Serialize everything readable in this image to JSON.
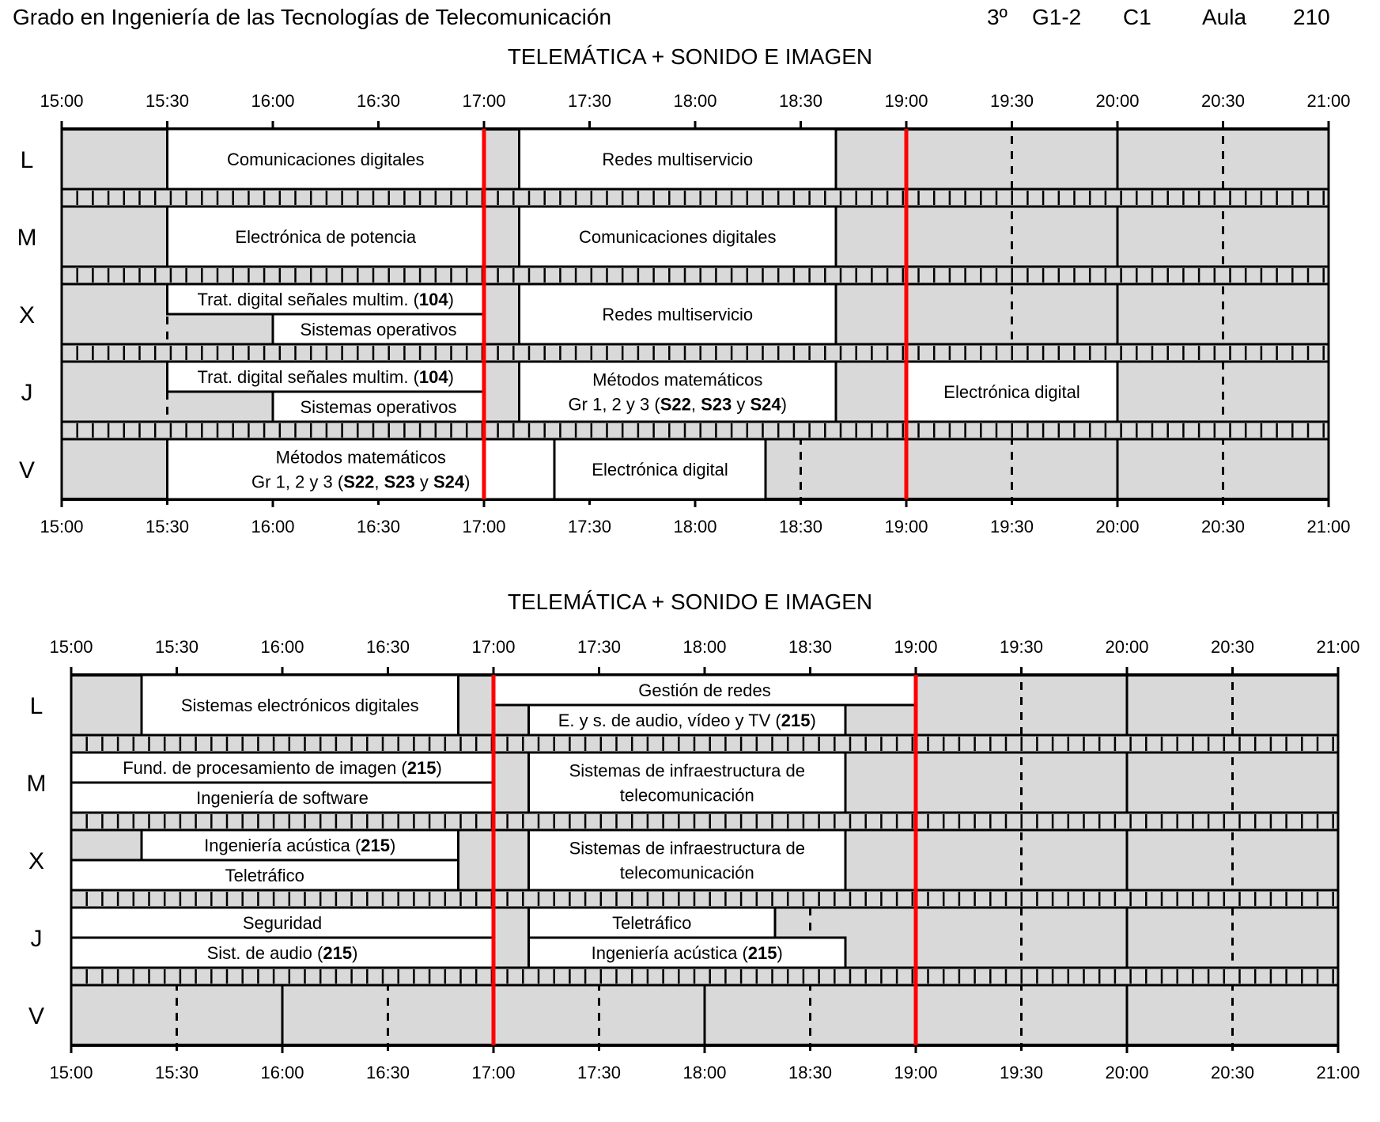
{
  "header": {
    "degree": "Grado en Ingeniería de las Tecnologías de Telecomunicación",
    "year": "3º",
    "group": "G1-2",
    "term": "C1",
    "room_label": "Aula",
    "room_number": "210"
  },
  "colors": {
    "empty_slot": "#d9d9d9",
    "class_slot": "#ffffff",
    "lines": "#000000",
    "red_marker": "#ff0000"
  },
  "time_labels": [
    "15:00",
    "15:30",
    "16:00",
    "16:30",
    "17:00",
    "17:30",
    "18:00",
    "18:30",
    "19:00",
    "19:30",
    "20:00",
    "20:30",
    "21:00"
  ],
  "schedules": [
    {
      "title": "TELEMÁTICA + SONIDO E IMAGEN",
      "red_markers": [
        "17:00",
        "19:00"
      ],
      "days": [
        {
          "label": "L",
          "blocks": [
            {
              "start": "15:30",
              "end": "17:00",
              "half": "full",
              "lines": [
                [
                  {
                    "t": "Comunicaciones digitales"
                  }
                ]
              ]
            },
            {
              "start": "17:10",
              "end": "18:40",
              "half": "full",
              "lines": [
                [
                  {
                    "t": "Redes multiservicio"
                  }
                ]
              ]
            }
          ]
        },
        {
          "label": "M",
          "blocks": [
            {
              "start": "15:30",
              "end": "17:00",
              "half": "full",
              "lines": [
                [
                  {
                    "t": "Electrónica de potencia"
                  }
                ]
              ]
            },
            {
              "start": "17:10",
              "end": "18:40",
              "half": "full",
              "lines": [
                [
                  {
                    "t": "Comunicaciones digitales"
                  }
                ]
              ]
            }
          ]
        },
        {
          "label": "X",
          "blocks": [
            {
              "start": "15:30",
              "end": "17:00",
              "half": "top",
              "lines": [
                [
                  {
                    "t": "Trat. digital señales multim. ("
                  },
                  {
                    "t": "104",
                    "b": true
                  },
                  {
                    "t": ")"
                  }
                ]
              ]
            },
            {
              "start": "16:00",
              "end": "17:00",
              "half": "bottom",
              "lines": [
                [
                  {
                    "t": "Sistemas operativos"
                  }
                ]
              ]
            },
            {
              "start": "17:10",
              "end": "18:40",
              "half": "full",
              "lines": [
                [
                  {
                    "t": "Redes multiservicio"
                  }
                ]
              ]
            }
          ]
        },
        {
          "label": "J",
          "blocks": [
            {
              "start": "15:30",
              "end": "17:00",
              "half": "top",
              "lines": [
                [
                  {
                    "t": "Trat. digital señales multim. ("
                  },
                  {
                    "t": "104",
                    "b": true
                  },
                  {
                    "t": ")"
                  }
                ]
              ]
            },
            {
              "start": "16:00",
              "end": "17:00",
              "half": "bottom",
              "lines": [
                [
                  {
                    "t": "Sistemas operativos"
                  }
                ]
              ]
            },
            {
              "start": "17:10",
              "end": "18:40",
              "half": "full",
              "lines": [
                [
                  {
                    "t": "Métodos matemáticos"
                  }
                ],
                [
                  {
                    "t": "Gr 1, 2 y 3 ("
                  },
                  {
                    "t": "S22",
                    "b": true
                  },
                  {
                    "t": ", "
                  },
                  {
                    "t": "S23",
                    "b": true
                  },
                  {
                    "t": " y "
                  },
                  {
                    "t": "S24",
                    "b": true
                  },
                  {
                    "t": ")"
                  }
                ]
              ]
            },
            {
              "start": "19:00",
              "end": "20:00",
              "half": "full",
              "lines": [
                [
                  {
                    "t": "Electrónica digital"
                  }
                ]
              ]
            }
          ]
        },
        {
          "label": "V",
          "blocks": [
            {
              "start": "15:30",
              "end": "17:20",
              "half": "full",
              "lines": [
                [
                  {
                    "t": "Métodos matemáticos"
                  }
                ],
                [
                  {
                    "t": "Gr 1, 2 y 3 ("
                  },
                  {
                    "t": "S22",
                    "b": true
                  },
                  {
                    "t": ", "
                  },
                  {
                    "t": "S23",
                    "b": true
                  },
                  {
                    "t": " y "
                  },
                  {
                    "t": "S24",
                    "b": true
                  },
                  {
                    "t": ")"
                  }
                ]
              ]
            },
            {
              "start": "17:20",
              "end": "18:20",
              "half": "full",
              "lines": [
                [
                  {
                    "t": "Electrónica digital"
                  }
                ]
              ]
            }
          ]
        }
      ]
    },
    {
      "title": "TELEMÁTICA + SONIDO E IMAGEN",
      "red_markers": [
        "17:00",
        "19:00"
      ],
      "days": [
        {
          "label": "L",
          "blocks": [
            {
              "start": "15:20",
              "end": "16:50",
              "half": "full",
              "lines": [
                [
                  {
                    "t": "Sistemas electrónicos digitales"
                  }
                ]
              ]
            },
            {
              "start": "17:00",
              "end": "19:00",
              "half": "top",
              "lines": [
                [
                  {
                    "t": "Gestión de redes"
                  }
                ]
              ]
            },
            {
              "start": "17:10",
              "end": "18:40",
              "half": "bottom",
              "lines": [
                [
                  {
                    "t": "E. y s. de audio, vídeo y TV ("
                  },
                  {
                    "t": "215",
                    "b": true
                  },
                  {
                    "t": ")"
                  }
                ]
              ]
            }
          ]
        },
        {
          "label": "M",
          "blocks": [
            {
              "start": "15:00",
              "end": "17:00",
              "half": "top",
              "lines": [
                [
                  {
                    "t": "Fund. de procesamiento de imagen ("
                  },
                  {
                    "t": "215",
                    "b": true
                  },
                  {
                    "t": ")"
                  }
                ]
              ]
            },
            {
              "start": "15:00",
              "end": "17:00",
              "half": "bottom",
              "lines": [
                [
                  {
                    "t": "Ingeniería de software"
                  }
                ]
              ]
            },
            {
              "start": "17:10",
              "end": "18:40",
              "half": "full",
              "lines": [
                [
                  {
                    "t": "Sistemas de infraestructura de"
                  }
                ],
                [
                  {
                    "t": "telecomunicación"
                  }
                ]
              ]
            }
          ]
        },
        {
          "label": "X",
          "blocks": [
            {
              "start": "15:20",
              "end": "16:50",
              "half": "top",
              "lines": [
                [
                  {
                    "t": "Ingeniería acústica ("
                  },
                  {
                    "t": "215",
                    "b": true
                  },
                  {
                    "t": ")"
                  }
                ]
              ]
            },
            {
              "start": "15:00",
              "end": "16:50",
              "half": "bottom",
              "lines": [
                [
                  {
                    "t": "Teletráfico"
                  }
                ]
              ]
            },
            {
              "start": "17:10",
              "end": "18:40",
              "half": "full",
              "lines": [
                [
                  {
                    "t": "Sistemas de infraestructura de"
                  }
                ],
                [
                  {
                    "t": "telecomunicación"
                  }
                ]
              ]
            }
          ]
        },
        {
          "label": "J",
          "blocks": [
            {
              "start": "15:00",
              "end": "17:00",
              "half": "top",
              "lines": [
                [
                  {
                    "t": "Seguridad"
                  }
                ]
              ]
            },
            {
              "start": "15:00",
              "end": "17:00",
              "half": "bottom",
              "lines": [
                [
                  {
                    "t": "Sist. de audio ("
                  },
                  {
                    "t": "215",
                    "b": true
                  },
                  {
                    "t": ")"
                  }
                ]
              ]
            },
            {
              "start": "17:10",
              "end": "18:20",
              "half": "top",
              "lines": [
                [
                  {
                    "t": "Teletráfico"
                  }
                ]
              ]
            },
            {
              "start": "17:10",
              "end": "18:40",
              "half": "bottom",
              "lines": [
                [
                  {
                    "t": "Ingeniería acústica ("
                  },
                  {
                    "t": "215",
                    "b": true
                  },
                  {
                    "t": ")"
                  }
                ]
              ]
            }
          ]
        },
        {
          "label": "V",
          "blocks": []
        }
      ]
    }
  ]
}
